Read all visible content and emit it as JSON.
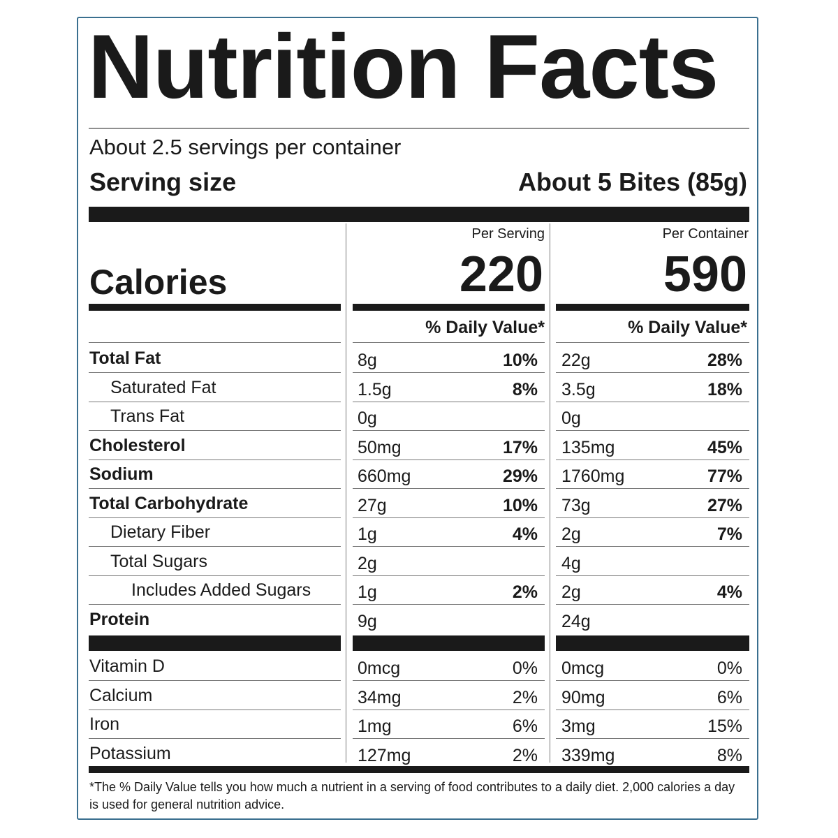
{
  "label": {
    "title": "Nutrition Facts",
    "servings_per_container": "About 2.5 servings per container",
    "serving_size_label": "Serving size",
    "serving_size_value": "About 5 Bites (85g)",
    "calories_label": "Calories",
    "col1_header": "Per Serving",
    "col2_header": "Per Container",
    "col1_calories": "220",
    "col2_calories": "590",
    "daily_value_header": "% Daily Value*",
    "footnote": "*The % Daily Value tells you how much a nutrient in a serving of food contributes to a daily diet. 2,000 calories a day is used for general nutrition advice."
  },
  "nutrients": [
    {
      "name": "Total Fat",
      "style": "bold",
      "serving_amount": "8g",
      "serving_dv": "10%",
      "container_amount": "22g",
      "container_dv": "28%"
    },
    {
      "name": "Saturated Fat",
      "style": "indent1",
      "serving_amount": "1.5g",
      "serving_dv": "8%",
      "container_amount": "3.5g",
      "container_dv": "18%"
    },
    {
      "name": "Trans Fat",
      "style": "indent1",
      "serving_amount": "0g",
      "serving_dv": "",
      "container_amount": "0g",
      "container_dv": ""
    },
    {
      "name": "Cholesterol",
      "style": "bold",
      "serving_amount": "50mg",
      "serving_dv": "17%",
      "container_amount": "135mg",
      "container_dv": "45%"
    },
    {
      "name": "Sodium",
      "style": "bold",
      "serving_amount": "660mg",
      "serving_dv": "29%",
      "container_amount": "1760mg",
      "container_dv": "77%"
    },
    {
      "name": "Total Carbohydrate",
      "style": "bold",
      "serving_amount": "27g",
      "serving_dv": "10%",
      "container_amount": "73g",
      "container_dv": "27%"
    },
    {
      "name": "Dietary Fiber",
      "style": "indent1",
      "serving_amount": "1g",
      "serving_dv": "4%",
      "container_amount": "2g",
      "container_dv": "7%"
    },
    {
      "name": "Total Sugars",
      "style": "indent1",
      "serving_amount": "2g",
      "serving_dv": "",
      "container_amount": "4g",
      "container_dv": ""
    },
    {
      "name": "Includes Added Sugars",
      "style": "indent2",
      "serving_amount": "1g",
      "serving_dv": "2%",
      "container_amount": "2g",
      "container_dv": "4%"
    },
    {
      "name": "Protein",
      "style": "bold",
      "serving_amount": "9g",
      "serving_dv": "",
      "container_amount": "24g",
      "container_dv": ""
    }
  ],
  "micronutrients": [
    {
      "name": "Vitamin D",
      "serving_amount": "0mcg",
      "serving_dv": "0%",
      "container_amount": "0mcg",
      "container_dv": "0%"
    },
    {
      "name": "Calcium",
      "serving_amount": "34mg",
      "serving_dv": "2%",
      "container_amount": "90mg",
      "container_dv": "6%"
    },
    {
      "name": "Iron",
      "serving_amount": "1mg",
      "serving_dv": "6%",
      "container_amount": "3mg",
      "container_dv": "15%"
    },
    {
      "name": "Potassium",
      "serving_amount": "127mg",
      "serving_dv": "2%",
      "container_amount": "339mg",
      "container_dv": "8%"
    }
  ]
}
